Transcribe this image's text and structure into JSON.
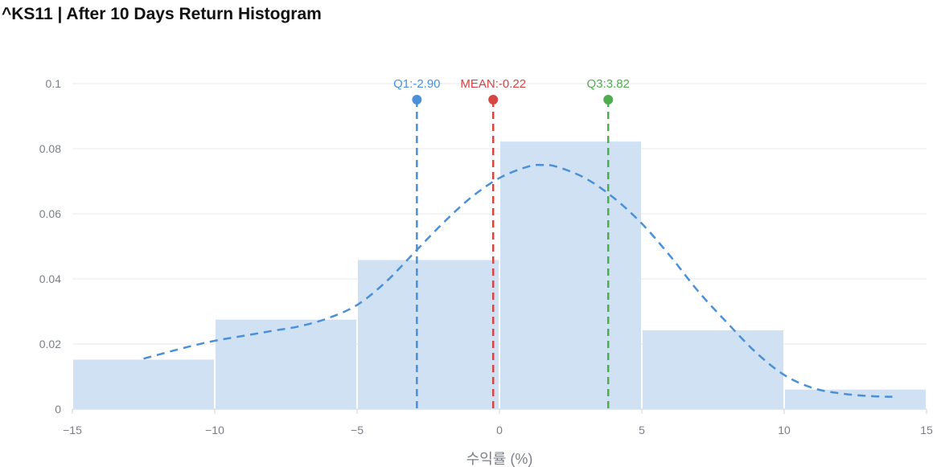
{
  "title": "^KS11 | After 10 Days Return Histogram",
  "chart_data": {
    "type": "bar",
    "title": "^KS11 | After 10 Days Return Histogram",
    "xlabel": "수익률 (%)",
    "ylabel": "",
    "xlim": [
      -15,
      15
    ],
    "ylim": [
      0,
      0.1
    ],
    "x_ticks": [
      "−15",
      "−10",
      "−5",
      "0",
      "5",
      "10",
      "15"
    ],
    "y_ticks": [
      "0",
      "0.02",
      "0.04",
      "0.06",
      "0.08",
      "0.1"
    ],
    "grid": true,
    "bins": [
      {
        "x0": -15,
        "x1": -10,
        "value": 0.0152
      },
      {
        "x0": -10,
        "x1": -5,
        "value": 0.0275
      },
      {
        "x0": -5,
        "x1": 0,
        "value": 0.0458
      },
      {
        "x0": 0,
        "x1": 5,
        "value": 0.0822
      },
      {
        "x0": 5,
        "x1": 10,
        "value": 0.0242
      },
      {
        "x0": 10,
        "x1": 15,
        "value": 0.006
      }
    ],
    "density_curve": [
      [
        -12.5,
        0.0155
      ],
      [
        -11,
        0.019
      ],
      [
        -10,
        0.021
      ],
      [
        -9,
        0.0225
      ],
      [
        -8,
        0.024
      ],
      [
        -7,
        0.0255
      ],
      [
        -6,
        0.028
      ],
      [
        -5,
        0.032
      ],
      [
        -4,
        0.039
      ],
      [
        -3,
        0.048
      ],
      [
        -2,
        0.057
      ],
      [
        -1,
        0.065
      ],
      [
        0,
        0.071
      ],
      [
        1,
        0.0745
      ],
      [
        1.5,
        0.075
      ],
      [
        2,
        0.0745
      ],
      [
        3,
        0.071
      ],
      [
        4,
        0.065
      ],
      [
        5,
        0.057
      ],
      [
        6,
        0.047
      ],
      [
        7,
        0.036
      ],
      [
        8,
        0.0265
      ],
      [
        9,
        0.0175
      ],
      [
        10,
        0.0105
      ],
      [
        11,
        0.0065
      ],
      [
        12,
        0.0048
      ],
      [
        13,
        0.004
      ],
      [
        13.8,
        0.0038
      ]
    ],
    "markers": [
      {
        "label": "Q1:-2.90",
        "value": -2.9,
        "color": "#4a90d9"
      },
      {
        "label": "MEAN:-0.22",
        "value": -0.22,
        "color": "#d64541"
      },
      {
        "label": "Q3:3.82",
        "value": 3.82,
        "color": "#4cae4c"
      }
    ],
    "colors": {
      "bar": "#cfe1f2",
      "curve": "#4a90d9"
    }
  }
}
